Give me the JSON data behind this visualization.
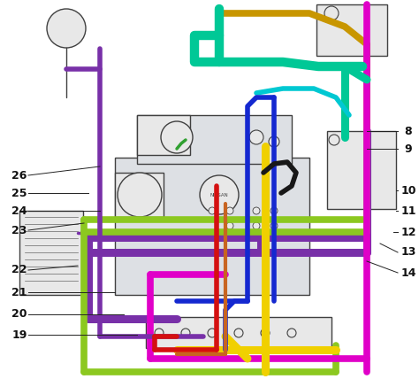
{
  "bg_color": "#ffffff",
  "figure_width": 4.74,
  "figure_height": 4.28,
  "dpi": 100,
  "colors": {
    "teal": "#00c896",
    "gold": "#c89600",
    "cyan": "#00c8d2",
    "blue": "#1428d0",
    "purple": "#7830a8",
    "lime": "#8cc820",
    "yellow": "#f0d000",
    "magenta": "#e000c8",
    "red": "#d41010",
    "orange": "#c86420",
    "black": "#181818",
    "green": "#30a030",
    "dark_gray": "#404040",
    "mid_gray": "#666666",
    "light_gray": "#cccccc",
    "lighter_gray": "#e8e8e8",
    "engine_fill": "#dde0e4"
  },
  "label_font_size": 9,
  "lw_hose_thick": 5.5,
  "lw_hose_med": 4.0,
  "lw_hose_thin": 2.5,
  "lw_engine": 1.0,
  "lw_leader": 0.7
}
